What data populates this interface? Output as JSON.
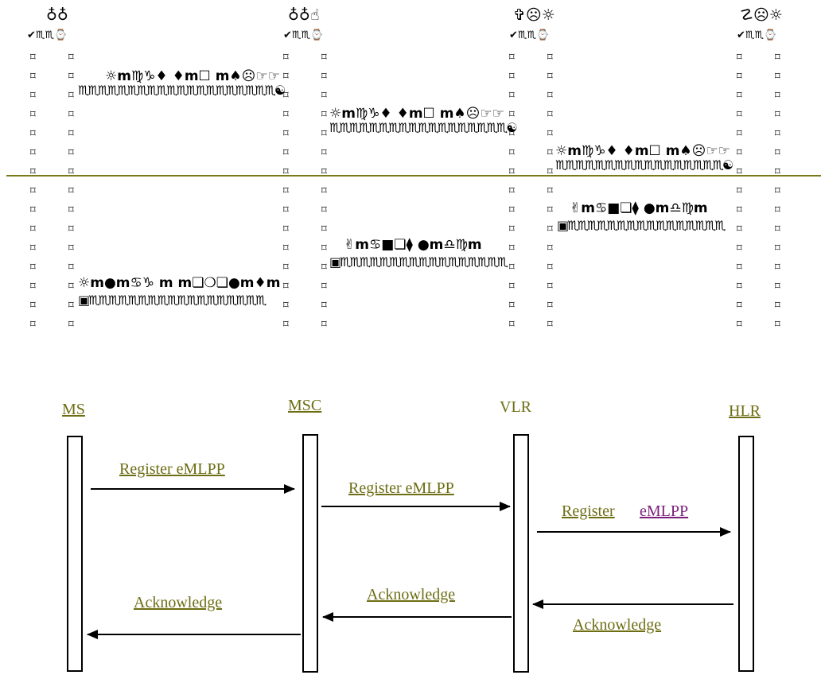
{
  "upper_diagram": {
    "lane_titles": [
      "♁♁",
      "♁♁☝",
      "✞☹☼",
      "☡☹☼"
    ],
    "lane_subtitle": "✔♏♏⌚",
    "column_mark": "⌑",
    "messages": [
      {
        "label": "☼m♍♑♦ ♦m☐ m♠☹☞☞",
        "underline": "♏♏♏♏♏♏♏♏♏♏♏♏♏♏♏♏♏♏♏♏☯"
      },
      {
        "label": "☼m♍♑♦ ♦m☐ m♠☹☞☞",
        "underline": "♏♏♏♏♏♏♏♏♏♏♏♏♏♏♏♏♏♏☯"
      },
      {
        "label": "☼m♍♑♦ ♦m☐ m♠☹☞☞",
        "underline": "♏♏♏♏♏♏♏♏♏♏♏♏♏♏♏♏♏☯"
      },
      {
        "label": "✌m♋■❏⧫ ●m♎♍m",
        "underline": "▣♏♏♏♏♏♏♏♏♏♏♏♏♏♏♏♏"
      },
      {
        "label": "✌m♋■❏⧫ ●m♎♍m",
        "underline": "▣♏♏♏♏♏♏♏♏♏♏♏♏♏♏♏♏♏"
      },
      {
        "label": "☼m●m♋♑ m m❏❍❏●m♦m",
        "underline": "▣♏♏♏♏♏♏♏♏♏♏♏♏♏♏♏♏♏♏"
      }
    ]
  },
  "lower_diagram": {
    "lanes": [
      "MS",
      "MSC",
      "VLR",
      "HLR"
    ],
    "messages": [
      "Register eMLPP",
      "Register eMLPP",
      "Register",
      "eMLPP",
      "Acknowledge",
      "Acknowledge",
      "Acknowledge"
    ]
  },
  "colors": {
    "link": "#6d6d14",
    "visited_link": "#7a1f7a",
    "divider": "#7a7a1a"
  }
}
